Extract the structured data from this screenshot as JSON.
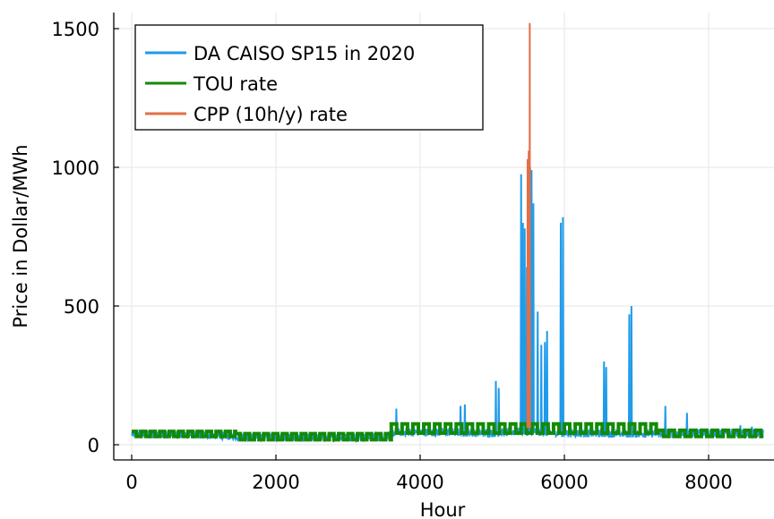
{
  "chart_data": {
    "type": "line",
    "xlabel": "Hour",
    "ylabel": "Price in Dollar/MWh",
    "xlim": [
      -300,
      8790
    ],
    "ylim": [
      -60,
      1560
    ],
    "x_ticks": [
      0,
      2000,
      4000,
      6000,
      8000
    ],
    "y_ticks": [
      0,
      500,
      1000,
      1500
    ],
    "grid": true,
    "legend_position": "top-left",
    "series": [
      {
        "name": "DA CAISO SP15 in 2020",
        "color": "#1f9bea",
        "style": "noisy",
        "base": [
          [
            0,
            38
          ],
          [
            1000,
            36
          ],
          [
            1500,
            30
          ],
          [
            2500,
            25
          ],
          [
            3500,
            28
          ],
          [
            3650,
            45
          ],
          [
            4500,
            45
          ],
          [
            5000,
            42
          ],
          [
            5400,
            48
          ],
          [
            6000,
            42
          ],
          [
            7000,
            40
          ],
          [
            8000,
            42
          ],
          [
            8760,
            40
          ]
        ],
        "noise": 15,
        "spikes": [
          [
            3670,
            130
          ],
          [
            4560,
            140
          ],
          [
            4620,
            145
          ],
          [
            5050,
            230
          ],
          [
            5090,
            205
          ],
          [
            5400,
            975
          ],
          [
            5425,
            800
          ],
          [
            5450,
            780
          ],
          [
            5480,
            640
          ],
          [
            5505,
            1030
          ],
          [
            5525,
            1000
          ],
          [
            5545,
            990
          ],
          [
            5570,
            870
          ],
          [
            5630,
            480
          ],
          [
            5680,
            360
          ],
          [
            5730,
            370
          ],
          [
            5760,
            410
          ],
          [
            5950,
            800
          ],
          [
            5980,
            820
          ],
          [
            6550,
            300
          ],
          [
            6580,
            280
          ],
          [
            6900,
            470
          ],
          [
            6930,
            500
          ],
          [
            7400,
            140
          ],
          [
            7700,
            115
          ],
          [
            8440,
            70
          ],
          [
            8600,
            65
          ]
        ]
      },
      {
        "name": "TOU rate",
        "color": "#138a07",
        "style": "band",
        "segments": [
          {
            "from": 0,
            "to": 1440,
            "low": 30,
            "high": 48,
            "period": 130
          },
          {
            "from": 1440,
            "to": 3600,
            "low": 18,
            "high": 40,
            "period": 130
          },
          {
            "from": 3600,
            "to": 7300,
            "low": 42,
            "high": 75,
            "period": 150
          },
          {
            "from": 7300,
            "to": 8760,
            "low": 30,
            "high": 52,
            "period": 150
          }
        ]
      },
      {
        "name": "CPP (10h/y) rate",
        "color": "#e26f46",
        "style": "spikes",
        "points": [
          [
            5490,
            1030
          ],
          [
            5505,
            1060
          ],
          [
            5520,
            1520
          ]
        ]
      }
    ]
  }
}
